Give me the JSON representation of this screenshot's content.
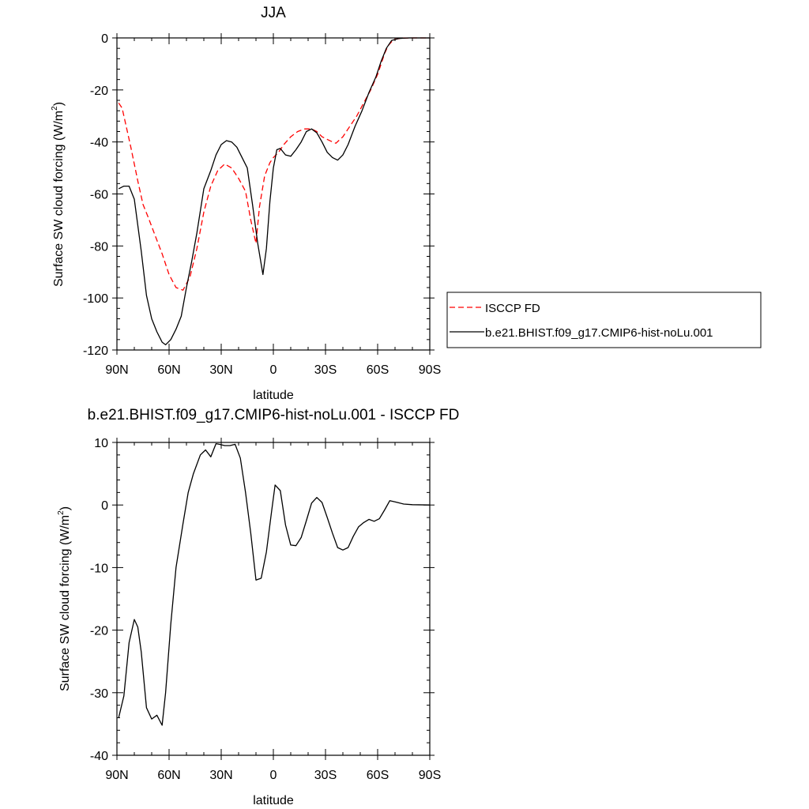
{
  "colors": {
    "obs": "#ff0000",
    "model": "#000000",
    "frame": "#000000"
  },
  "chart_data": [
    {
      "type": "line",
      "title": "JJA",
      "xlabel": "latitude",
      "ylabel": "Surface SW cloud forcing (W/m",
      "ylabel_sup": "2",
      "ylabel_end": ")",
      "xlim": [
        90,
        -90
      ],
      "ylim": [
        -120,
        0
      ],
      "xticks": [
        90,
        60,
        30,
        0,
        -30,
        -60,
        -90
      ],
      "xtick_labels": [
        "90N",
        "60N",
        "30N",
        "0",
        "30S",
        "60S",
        "90S"
      ],
      "yticks": [
        0,
        -20,
        -40,
        -60,
        -80,
        -100,
        -120
      ],
      "ytick_labels": [
        "0",
        "-20",
        "-40",
        "-60",
        "-80",
        "-100",
        "-120"
      ],
      "legend": {
        "position": "right",
        "entries": [
          "ISCCP FD",
          "b.e21.BHIST.f09_g17.CMIP6-hist-noLu.001"
        ]
      },
      "series": [
        {
          "name": "ISCCP FD",
          "style": "dashed",
          "color": "#ff0000",
          "x": [
            89,
            87,
            85,
            82,
            78,
            75,
            72,
            68,
            64,
            60,
            56,
            52,
            48,
            44,
            40,
            36,
            32,
            28,
            24,
            20,
            16,
            13,
            10,
            8,
            5,
            2,
            0,
            -3,
            -6,
            -10,
            -14,
            -18,
            -22,
            -25,
            -28,
            -31,
            -34,
            -36,
            -40,
            -44,
            -48,
            -52,
            -56,
            -60,
            -62,
            -64,
            -66,
            -68,
            -70,
            -74,
            -80,
            -90
          ],
          "y": [
            -25,
            -27,
            -33,
            -42,
            -55,
            -64,
            -69,
            -76,
            -83,
            -91,
            -96,
            -97,
            -92,
            -81,
            -67,
            -57,
            -51,
            -48.5,
            -50,
            -54,
            -59,
            -70,
            -79,
            -65,
            -53,
            -48,
            -46,
            -44,
            -41,
            -38,
            -36,
            -35,
            -35,
            -36,
            -38,
            -39,
            -40,
            -40.5,
            -38,
            -34,
            -30,
            -25,
            -20,
            -14,
            -10,
            -6,
            -3,
            -1.5,
            -0.5,
            -0.1,
            0,
            0
          ]
        },
        {
          "name": "b.e21.BHIST.f09_g17.CMIP6-hist-noLu.001",
          "style": "solid",
          "color": "#000000",
          "x": [
            89,
            86,
            83,
            80,
            76,
            73,
            70,
            67,
            64,
            62,
            59,
            56,
            53,
            50,
            47,
            44,
            40,
            36,
            33,
            30,
            27,
            24,
            21,
            18,
            15,
            12,
            9,
            6,
            4,
            2,
            0,
            -2,
            -4,
            -7,
            -10,
            -13,
            -16,
            -19,
            -22,
            -25,
            -28,
            -31,
            -34,
            -37,
            -40,
            -43,
            -47,
            -51,
            -55,
            -59,
            -62,
            -65,
            -68,
            -72,
            -78,
            -85,
            -90
          ],
          "y": [
            -58,
            -57,
            -57,
            -62,
            -82,
            -99,
            -108,
            -113,
            -117,
            -118,
            -116,
            -112,
            -107,
            -96,
            -86,
            -75,
            -58,
            -51,
            -45,
            -41,
            -39.5,
            -40,
            -42,
            -46,
            -50,
            -64,
            -79,
            -91,
            -81,
            -63,
            -50,
            -43,
            -42.5,
            -45,
            -45.5,
            -43,
            -40,
            -36,
            -35,
            -36.5,
            -40,
            -44,
            -46,
            -47,
            -45,
            -41,
            -34,
            -28,
            -21,
            -15,
            -9,
            -4,
            -1,
            -0.2,
            0,
            0,
            0
          ]
        }
      ]
    },
    {
      "type": "line",
      "title": "b.e21.BHIST.f09_g17.CMIP6-hist-noLu.001 - ISCCP FD",
      "xlabel": "latitude",
      "ylabel": "Surface SW cloud forcing (W/m",
      "ylabel_sup": "2",
      "ylabel_end": ")",
      "xlim": [
        90,
        -90
      ],
      "ylim": [
        -40,
        10
      ],
      "xticks": [
        90,
        60,
        30,
        0,
        -30,
        -60,
        -90
      ],
      "xtick_labels": [
        "90N",
        "60N",
        "30N",
        "0",
        "30S",
        "60S",
        "90S"
      ],
      "yticks": [
        10,
        0,
        -10,
        -20,
        -30,
        -40
      ],
      "ytick_labels": [
        "10",
        "0",
        "-10",
        "-20",
        "-30",
        "-40"
      ],
      "series": [
        {
          "style": "solid",
          "color": "#000000",
          "x": [
            89,
            86,
            83,
            80,
            78,
            76,
            73,
            70,
            67,
            64,
            62,
            59,
            56,
            52,
            49,
            46,
            42,
            39,
            36,
            33,
            31,
            28,
            25,
            22,
            19,
            16,
            13,
            10,
            7,
            4,
            1,
            -1,
            -4,
            -7,
            -10,
            -13,
            -16,
            -19,
            -22,
            -25,
            -28,
            -31,
            -34,
            -37,
            -40,
            -43,
            -46,
            -49,
            -52,
            -55,
            -58,
            -61,
            -64,
            -67,
            -70,
            -75,
            -80,
            -90
          ],
          "y": [
            -34,
            -30.5,
            -22,
            -18.3,
            -19.5,
            -23.5,
            -32.4,
            -34.2,
            -33.6,
            -35.2,
            -30,
            -19,
            -10,
            -3,
            2,
            5,
            8,
            8.8,
            7.7,
            9.8,
            9.7,
            9.5,
            9.5,
            9.7,
            7.5,
            2,
            -4.5,
            -12,
            -11.7,
            -7.5,
            -1,
            3.2,
            2.3,
            -3.2,
            -6.4,
            -6.5,
            -5.2,
            -2.5,
            0.3,
            1.2,
            0.4,
            -2,
            -4.5,
            -6.8,
            -7.2,
            -6.8,
            -5,
            -3.5,
            -2.8,
            -2.3,
            -2.6,
            -2.2,
            -0.8,
            0.7,
            0.5,
            0.15,
            0.05,
            0
          ]
        }
      ]
    }
  ]
}
